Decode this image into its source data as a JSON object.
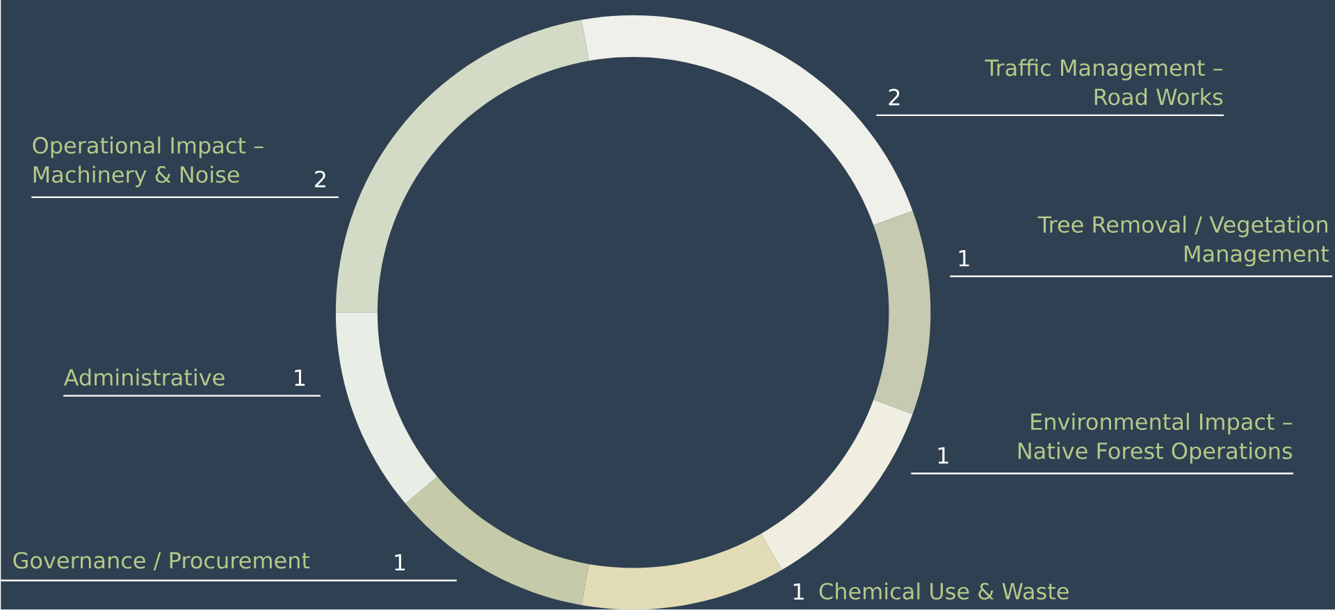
{
  "chart_data": {
    "type": "donut",
    "categories": [
      "Traffic Management – Road Works",
      "Tree Removal / Vegetation Management",
      "Environmental Impact – Native Forest Operations",
      "Chemical Use & Waste",
      "Governance / Procurement",
      "Administrative",
      "Operational Impact – Machinery & Noise"
    ],
    "values": [
      2,
      1,
      1,
      1,
      1,
      1,
      2
    ],
    "colors": [
      "#f0f0ea",
      "#c5cab0",
      "#efeee0",
      "#e2dcb6",
      "#c5cba8",
      "#e8eee6",
      "#d3dbc6"
    ],
    "data_labels": true
  }
}
